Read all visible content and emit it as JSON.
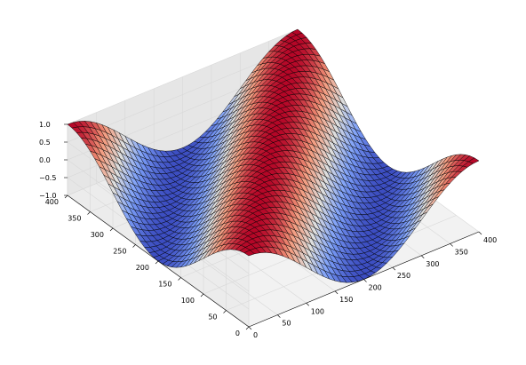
{
  "chart_data": {
    "type": "surface",
    "function": "z = cos(2*pi*(x - y)/400)",
    "x_range": [
      0,
      400
    ],
    "y_range": [
      0,
      400
    ],
    "z_range": [
      -1,
      1
    ],
    "colormap": "coolwarm",
    "grid": true,
    "x_ticks": [
      "0",
      "50",
      "100",
      "150",
      "200",
      "250",
      "300",
      "350",
      "400"
    ],
    "y_ticks": [
      "0",
      "50",
      "100",
      "150",
      "200",
      "250",
      "300",
      "350",
      "400"
    ],
    "z_ticks": [
      "−1.0",
      "−0.5",
      "0.0",
      "0.5",
      "1.0"
    ],
    "colors": {
      "low": "#3b4cc0",
      "mid": "#dddddd",
      "high": "#b40426",
      "pane": "#f2f2f2",
      "grid": "#d8d8d8"
    }
  }
}
